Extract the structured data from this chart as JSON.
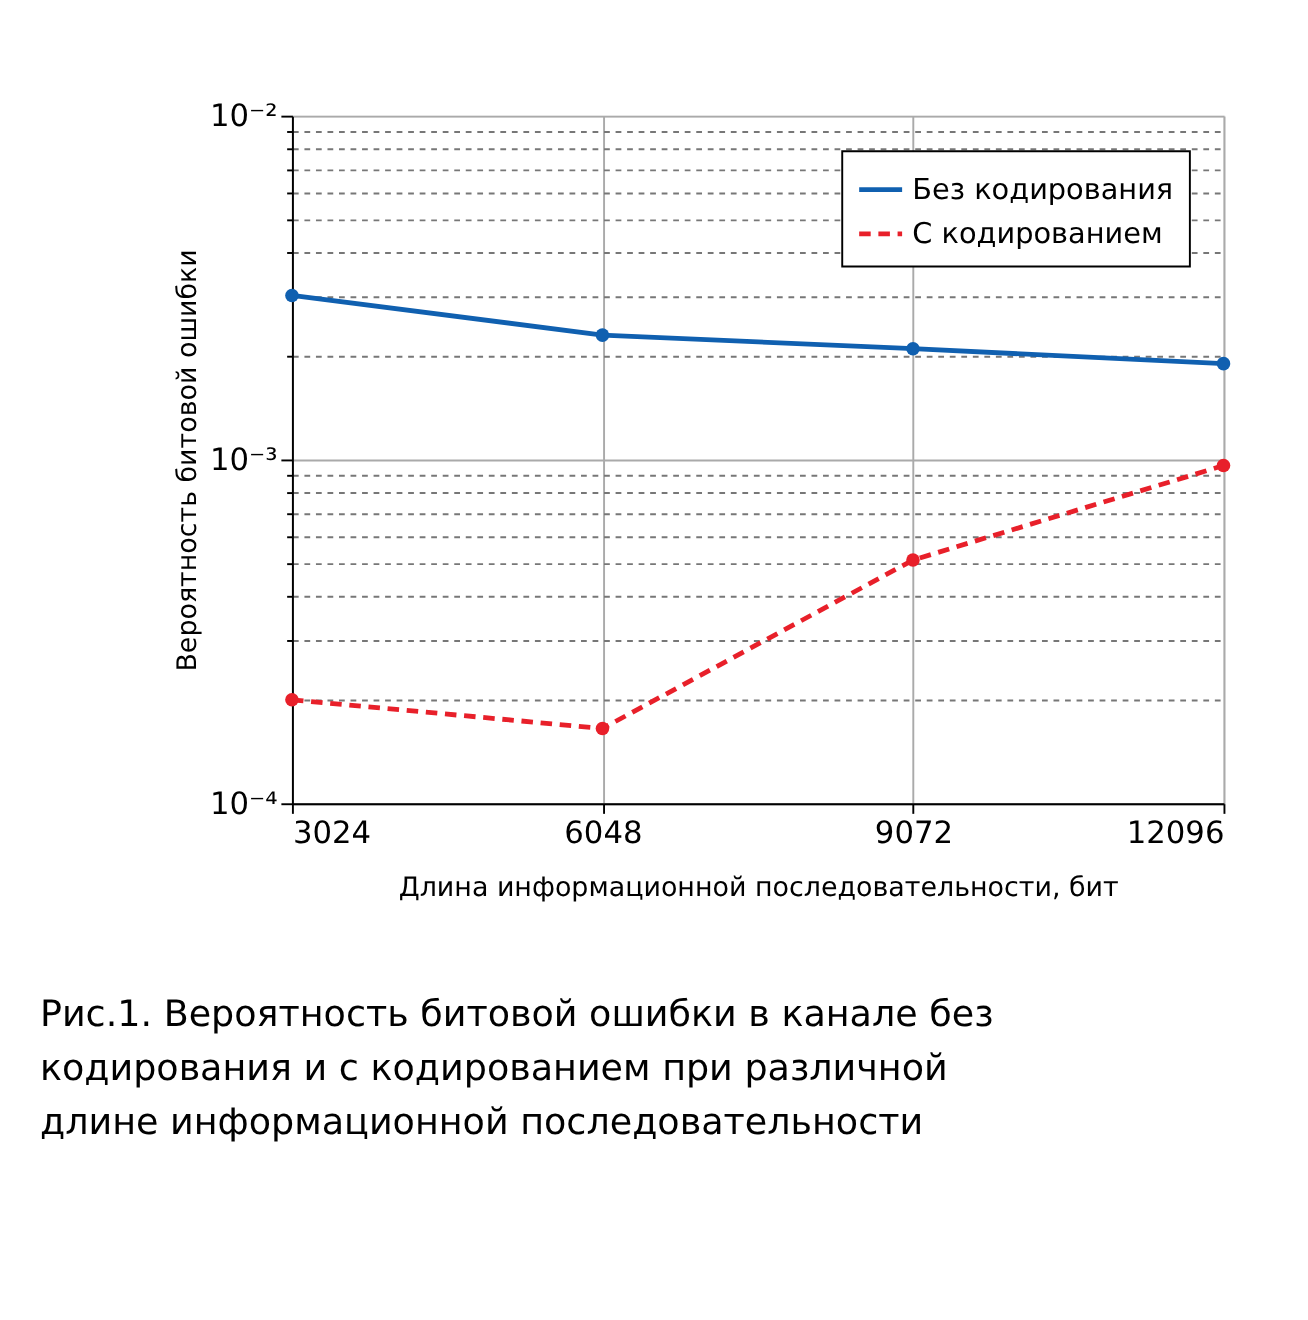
{
  "chart_data": {
    "type": "line",
    "xlabel": "Длина информационной последовательности, бит",
    "ylabel": "Вероятность битовой ошибки",
    "x": [
      3024,
      6048,
      9072,
      12096
    ],
    "xlim": [
      3024,
      12096
    ],
    "xticks": [
      3024,
      6048,
      9072,
      12096
    ],
    "log": "y",
    "ylim": [
      0.0001,
      0.01
    ],
    "yticks": [
      {
        "value": 0.0001,
        "label": "10⁻⁴"
      },
      {
        "value": 0.0002,
        "label": null
      },
      {
        "value": 0.0003,
        "label": null
      },
      {
        "value": 0.0004,
        "label": null
      },
      {
        "value": 0.0005,
        "label": null
      },
      {
        "value": 0.0006,
        "label": null
      },
      {
        "value": 0.0007,
        "label": null
      },
      {
        "value": 0.0008,
        "label": null
      },
      {
        "value": 0.0009,
        "label": null
      },
      {
        "value": 0.001,
        "label": "10⁻³"
      },
      {
        "value": 0.002,
        "label": null
      },
      {
        "value": 0.003,
        "label": null
      },
      {
        "value": 0.004,
        "label": null
      },
      {
        "value": 0.005,
        "label": null
      },
      {
        "value": 0.006,
        "label": null
      },
      {
        "value": 0.007,
        "label": null
      },
      {
        "value": 0.008,
        "label": null
      },
      {
        "value": 0.009,
        "label": null
      },
      {
        "value": 0.01,
        "label": "10⁻²"
      }
    ],
    "grid": true,
    "legend": "top right",
    "marker": "circle",
    "series": [
      {
        "name": "Без кодирования",
        "color": "#1060b0",
        "line_style": "solid",
        "values": [
          0.003,
          0.0023,
          0.0021,
          0.0019
        ]
      },
      {
        "name": "С кодированием",
        "color": "#e8202a",
        "line_style": "dashed",
        "values": [
          0.0002,
          0.000165,
          0.00051,
          0.00096
        ]
      }
    ],
    "annotations": [
      "Рис.1. Вероятность битовой ошибки в канале без кодирования и с кодированием при различной длине информационной последовательности"
    ]
  }
}
